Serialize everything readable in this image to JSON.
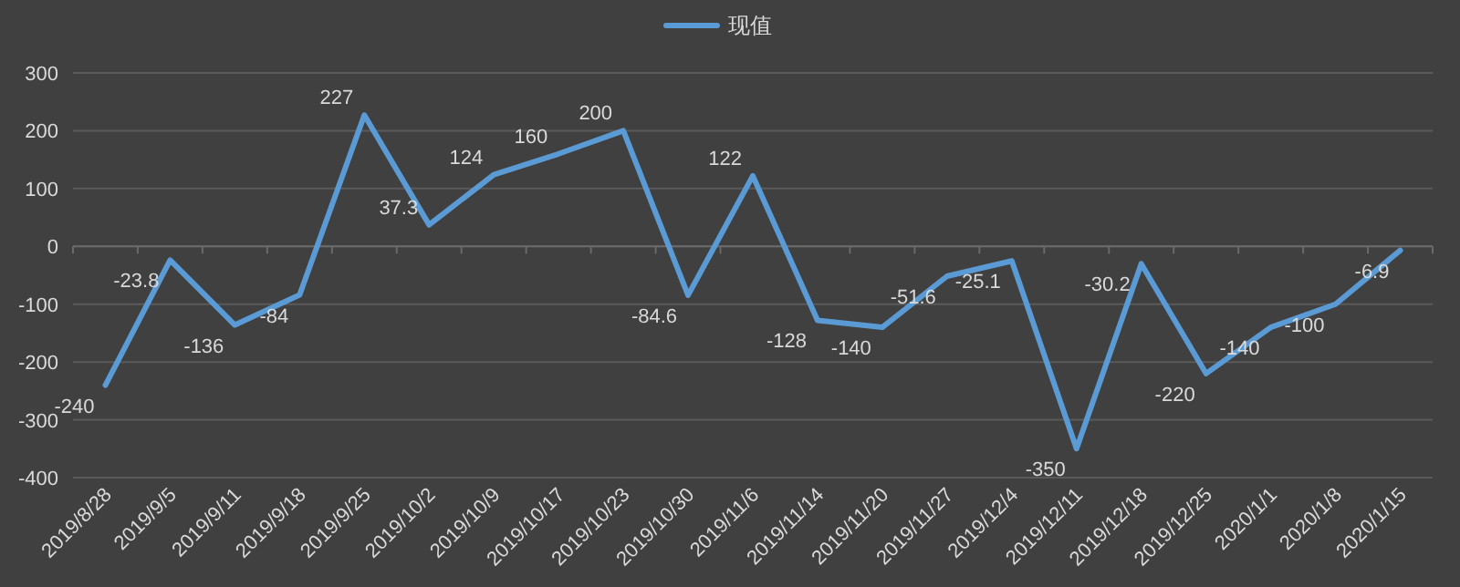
{
  "chart_data": {
    "type": "line",
    "categories": [
      "2019/8/28",
      "2019/9/5",
      "2019/9/11",
      "2019/9/18",
      "2019/9/25",
      "2019/10/2",
      "2019/10/9",
      "2019/10/17",
      "2019/10/23",
      "2019/10/30",
      "2019/11/6",
      "2019/11/14",
      "2019/11/20",
      "2019/11/27",
      "2019/12/4",
      "2019/12/11",
      "2019/12/18",
      "2019/12/25",
      "2020/1/1",
      "2020/1/8",
      "2020/1/15"
    ],
    "series": [
      {
        "name": "现值",
        "color": "#5b9bd5",
        "values": [
          -240,
          -23.8,
          -136,
          -84,
          227,
          37.3,
          124,
          160,
          200,
          -84.6,
          122,
          -128,
          -140,
          -51.6,
          -25.1,
          -350,
          -30.2,
          -220,
          -140,
          -100,
          -6.9
        ]
      }
    ],
    "ylim": [
      -400,
      300
    ],
    "yticks": [
      -400,
      -300,
      -200,
      -100,
      0,
      100,
      200,
      300
    ],
    "grid": "y",
    "legend": "top",
    "data_labels": true,
    "marker": "none",
    "line_style": "solid"
  }
}
